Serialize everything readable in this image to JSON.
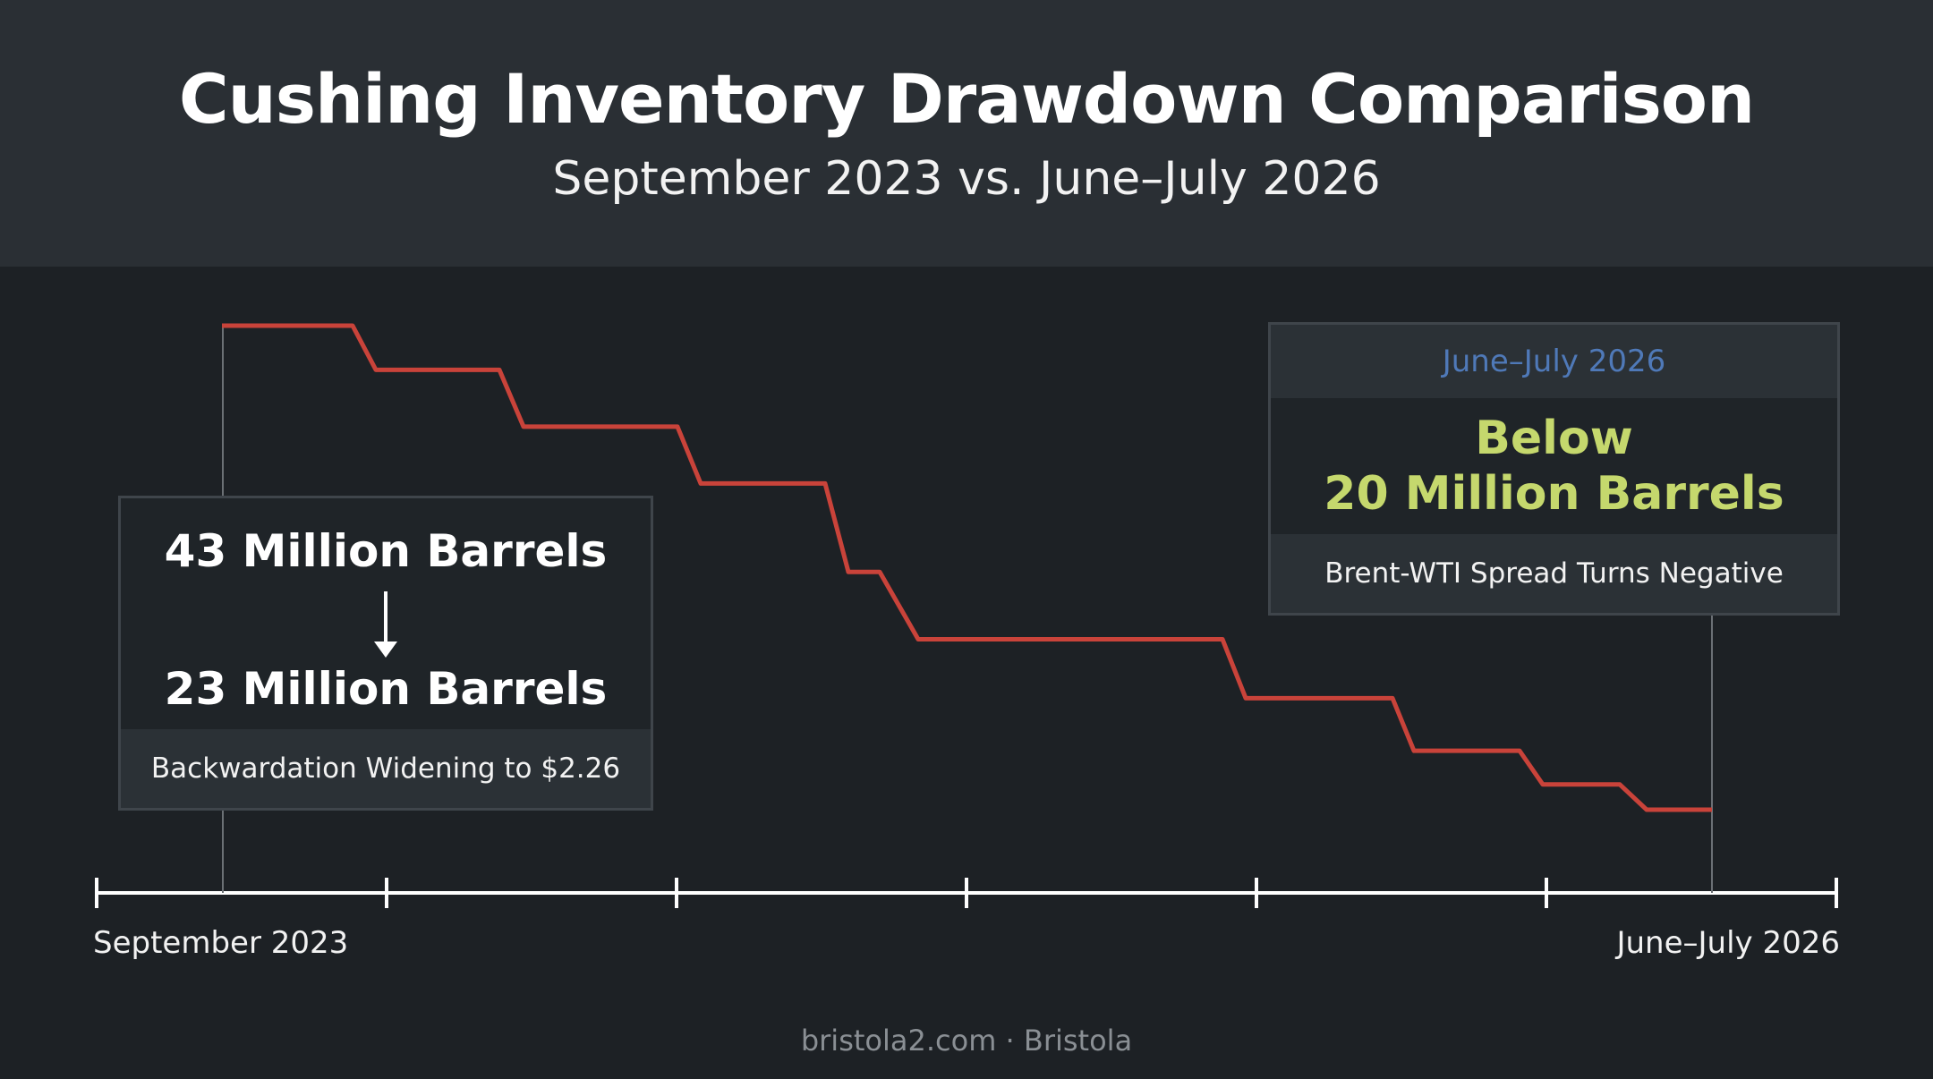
{
  "header": {
    "title": "Cushing Inventory Drawdown Comparison",
    "subtitle": "September 2023 vs. June–July 2026"
  },
  "chart_data": {
    "type": "line",
    "x_start_label": "September 2023",
    "x_end_label": "June–July 2026",
    "tick_count": 7,
    "series_color": "#c9433a",
    "step_levels": [
      43,
      40.9,
      38.2,
      35.5,
      31.3,
      28.1,
      25.3,
      22.8,
      21.2,
      20
    ]
  },
  "annotations": {
    "left_box": {
      "from_label": "43 Million Barrels",
      "to_label": "23 Million Barrels",
      "footer": "Backwardation Widening to $2.26"
    },
    "right_box": {
      "header": "June–July 2026",
      "highlight_line1": "Below",
      "highlight_line2": "20 Million Barrels",
      "footer": "Brent-WTI Spread Turns Negative"
    }
  },
  "footer": {
    "attribution": "bristola2.com · Bristola"
  }
}
